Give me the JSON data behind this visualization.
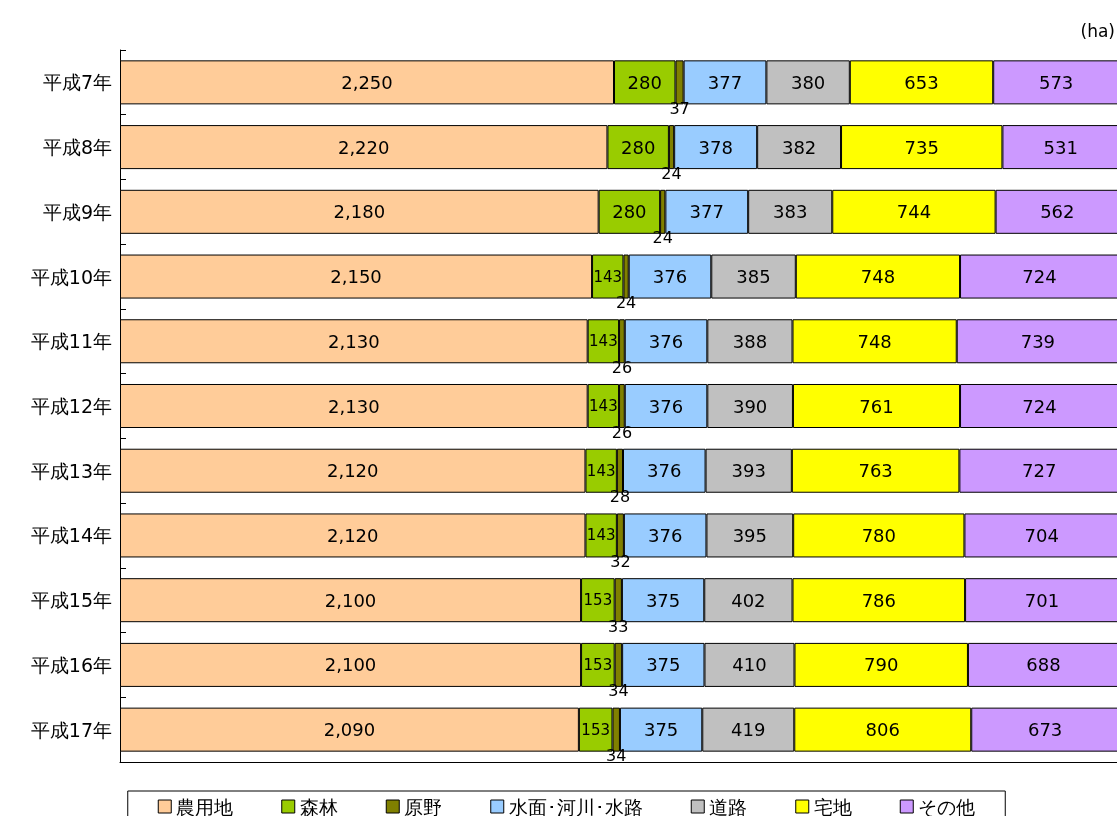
{
  "chart_data": {
    "type": "bar",
    "orientation": "horizontal",
    "stacked": true,
    "data_labels": true,
    "grid": false,
    "legend": "bottom",
    "tick_labels": "y",
    "xlim": [
      0,
      4550
    ],
    "annotations": [
      "(ha)"
    ],
    "categories": [
      "平成7年",
      "平成8年",
      "平成9年",
      "平成10年",
      "平成11年",
      "平成12年",
      "平成13年",
      "平成14年",
      "平成15年",
      "平成16年",
      "平成17年"
    ],
    "series": [
      {
        "name": "農用地",
        "color": "#ffcc99",
        "values": [
          2250,
          2220,
          2180,
          2150,
          2130,
          2130,
          2120,
          2120,
          2100,
          2100,
          2090
        ],
        "value_labels": [
          "2,250",
          "2,220",
          "2,180",
          "2,150",
          "2,130",
          "2,130",
          "2,120",
          "2,120",
          "2,100",
          "2,100",
          "2,090"
        ]
      },
      {
        "name": "森林",
        "color": "#99cc00",
        "values": [
          280,
          280,
          280,
          143,
          143,
          143,
          143,
          143,
          153,
          153,
          153
        ]
      },
      {
        "name": "原野",
        "color": "#808000",
        "values": [
          37,
          24,
          24,
          24,
          26,
          26,
          28,
          32,
          33,
          34,
          34
        ]
      },
      {
        "name": "水面･河川･水路",
        "color": "#99ccff",
        "values": [
          377,
          378,
          377,
          376,
          376,
          376,
          376,
          376,
          375,
          375,
          375
        ]
      },
      {
        "name": "道路",
        "color": "#c0c0c0",
        "values": [
          380,
          382,
          383,
          385,
          388,
          390,
          393,
          395,
          402,
          410,
          419
        ]
      },
      {
        "name": "宅地",
        "color": "#ffff00",
        "values": [
          653,
          735,
          744,
          748,
          748,
          761,
          763,
          780,
          786,
          790,
          806
        ]
      },
      {
        "name": "その他",
        "color": "#cc99ff",
        "values": [
          573,
          531,
          562,
          724,
          739,
          724,
          727,
          704,
          701,
          688,
          673
        ]
      }
    ]
  }
}
